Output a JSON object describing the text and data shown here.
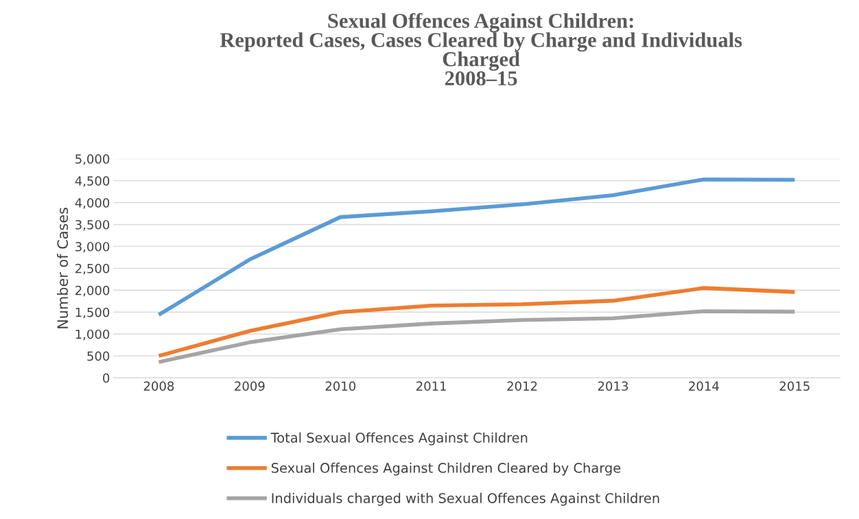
{
  "chart_data": {
    "type": "line",
    "title": "Sexual Offences Against Children:\nReported Cases, Cases Cleared by Charge and Individuals\nCharged\n2008–15",
    "ylabel": "Number of Cases",
    "categories": [
      "2008",
      "2009",
      "2010",
      "2011",
      "2012",
      "2013",
      "2014",
      "2015"
    ],
    "series": [
      {
        "name": "Total Sexual Offences Against Children",
        "color": "#5b9bd5",
        "values": [
          1440,
          2700,
          3670,
          3800,
          3960,
          4170,
          4530,
          4520
        ]
      },
      {
        "name": "Sexual Offences Against Children Cleared by Charge",
        "color": "#ed7d31",
        "values": [
          500,
          1070,
          1500,
          1650,
          1680,
          1760,
          2050,
          1960
        ]
      },
      {
        "name": "Individuals charged with Sexual Offences Against Children",
        "color": "#a5a5a5",
        "values": [
          360,
          810,
          1110,
          1240,
          1320,
          1360,
          1520,
          1510
        ]
      }
    ],
    "ylim": [
      0,
      5000
    ],
    "yticks": [
      0,
      500,
      {
        "value": 1000,
        "label": "1,000"
      },
      {
        "value": 1500,
        "label": "1,500"
      },
      {
        "value": 2000,
        "label": "2,000"
      },
      {
        "value": 2500,
        "label": "2,500"
      },
      {
        "value": 3000,
        "label": "3,000"
      },
      {
        "value": 3500,
        "label": "3,500"
      },
      {
        "value": 4000,
        "label": "4,000"
      },
      {
        "value": 4500,
        "label": "4,500"
      },
      {
        "value": 5000,
        "label": "5,000"
      }
    ],
    "grid": "y",
    "legend": "bottom",
    "marker": "none",
    "line_style": "solid"
  }
}
